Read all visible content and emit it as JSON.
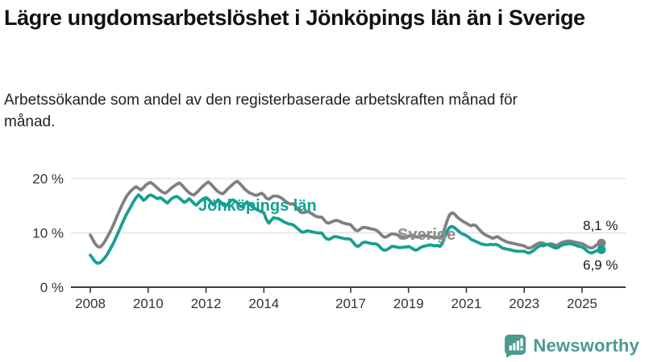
{
  "header": {
    "title": "Lägre ungdomsarbetslöshet i Jönköpings län än i Sverige",
    "subtitle": "Arbetssökande som andel av den registerbaserade arbetskraften månad för månad."
  },
  "footer": {
    "brand": "Newsworthy",
    "logo_icon": "bar-chart-speech-bubble-icon"
  },
  "colors": {
    "jonkoping_line": "#14a092",
    "sverige_line": "#808080",
    "sverige_label": "#8c8c8c",
    "grid": "#dcdcdc",
    "axis": "#3a3a3a",
    "tick_text": "#333333",
    "end_label_text": "#1a1a1a",
    "logo_teal": "#4a9a93"
  },
  "chart_data": {
    "type": "line",
    "title": "Lägre ungdomsarbetslöshet i Jönköpings län än i Sverige",
    "xlabel": "",
    "ylabel": "Arbetssökande som andel av den registerbaserade arbetskraften",
    "frequency": "monthly",
    "x_start": "2008-01",
    "x_end": "2025-09",
    "x_ticks": [
      2008,
      2010,
      2012,
      2014,
      2017,
      2019,
      2021,
      2023,
      2025
    ],
    "y_ticks": [
      {
        "value": 0,
        "label": "0 %"
      },
      {
        "value": 10,
        "label": "10 %"
      },
      {
        "value": 20,
        "label": "20 %"
      }
    ],
    "ylim": [
      0,
      22
    ],
    "grid": "horizontal-only",
    "legend_position": "inline-labels-on-lines",
    "series": [
      {
        "name": "Sverige",
        "end_label": "8,1 %",
        "end_value": 8.1,
        "values": [
          9.6,
          8.8,
          8.0,
          7.5,
          7.4,
          7.8,
          8.4,
          9.2,
          10.0,
          10.9,
          11.9,
          13.0,
          14.0,
          15.0,
          15.9,
          16.7,
          17.3,
          17.8,
          18.2,
          18.5,
          18.2,
          17.9,
          18.3,
          18.8,
          19.1,
          19.3,
          19.0,
          18.6,
          18.2,
          17.8,
          17.5,
          17.3,
          17.6,
          18.0,
          18.4,
          18.7,
          19.0,
          19.2,
          18.8,
          18.3,
          17.8,
          17.4,
          17.1,
          17.0,
          17.4,
          17.8,
          18.3,
          18.7,
          19.1,
          19.4,
          19.0,
          18.5,
          18.0,
          17.6,
          17.3,
          17.2,
          17.6,
          18.1,
          18.5,
          18.9,
          19.3,
          19.5,
          19.1,
          18.6,
          18.1,
          17.7,
          17.4,
          17.2,
          17.0,
          16.9,
          17.1,
          17.3,
          17.0,
          16.4,
          16.2,
          16.5,
          16.8,
          16.8,
          16.7,
          16.5,
          16.2,
          15.8,
          15.5,
          15.3,
          15.4,
          15.0,
          14.4,
          13.9,
          13.7,
          13.8,
          13.9,
          13.8,
          13.5,
          13.2,
          13.0,
          12.9,
          12.9,
          12.4,
          11.9,
          11.8,
          12.0,
          12.2,
          12.3,
          12.2,
          12.0,
          11.8,
          11.7,
          11.6,
          11.5,
          11.0,
          10.5,
          10.4,
          10.7,
          11.0,
          11.0,
          10.9,
          10.8,
          10.7,
          10.6,
          10.4,
          10.0,
          9.5,
          9.2,
          9.3,
          9.6,
          9.8,
          9.8,
          9.7,
          9.5,
          9.3,
          9.2,
          9.1,
          9.4,
          9.6,
          9.5,
          9.3,
          9.2,
          9.4,
          9.5,
          9.5,
          9.4,
          9.3,
          9.2,
          9.1,
          9.2,
          9.0,
          9.5,
          10.8,
          12.2,
          13.3,
          13.7,
          13.5,
          13.0,
          12.6,
          12.3,
          12.0,
          11.8,
          11.5,
          11.3,
          11.5,
          11.3,
          10.8,
          10.3,
          9.9,
          9.6,
          9.4,
          9.2,
          9.0,
          9.2,
          9.3,
          9.0,
          8.7,
          8.5,
          8.3,
          8.2,
          8.1,
          8.0,
          7.9,
          7.8,
          7.7,
          7.6,
          7.3,
          7.2,
          7.3,
          7.6,
          7.9,
          8.1,
          8.2,
          8.1,
          7.8,
          7.9,
          8.0,
          7.9,
          7.7,
          7.8,
          8.1,
          8.3,
          8.4,
          8.5,
          8.5,
          8.4,
          8.3,
          8.2,
          8.1,
          8.0,
          7.8,
          7.5,
          7.3,
          7.2,
          7.4,
          7.8,
          8.0,
          8.1
        ]
      },
      {
        "name": "Jönköpings län",
        "end_label": "6,9 %",
        "end_value": 6.9,
        "values": [
          5.9,
          5.3,
          4.7,
          4.4,
          4.5,
          4.9,
          5.4,
          6.0,
          6.8,
          7.6,
          8.5,
          9.5,
          10.5,
          11.5,
          12.5,
          13.4,
          14.2,
          15.0,
          15.8,
          16.5,
          17.0,
          16.6,
          16.0,
          16.3,
          16.8,
          17.0,
          16.8,
          16.5,
          16.3,
          16.5,
          16.2,
          15.8,
          15.5,
          16.0,
          16.4,
          16.6,
          16.7,
          16.4,
          16.0,
          15.6,
          15.9,
          16.3,
          15.9,
          15.4,
          15.1,
          15.6,
          16.0,
          16.3,
          16.5,
          16.2,
          15.7,
          15.2,
          15.6,
          16.1,
          15.7,
          15.2,
          14.9,
          15.3,
          15.8,
          16.1,
          15.9,
          15.5,
          15.0,
          14.8,
          15.3,
          15.7,
          15.3,
          14.9,
          14.6,
          14.3,
          14.1,
          13.9,
          13.7,
          12.5,
          11.8,
          12.3,
          12.8,
          12.7,
          12.6,
          12.4,
          12.1,
          11.9,
          11.7,
          11.6,
          11.5,
          11.2,
          10.8,
          10.4,
          10.1,
          10.2,
          10.4,
          10.3,
          10.2,
          10.1,
          10.0,
          10.0,
          10.0,
          9.4,
          8.9,
          8.8,
          9.0,
          9.3,
          9.3,
          9.2,
          9.1,
          9.0,
          8.9,
          8.9,
          8.8,
          8.3,
          7.7,
          7.5,
          7.8,
          8.2,
          8.3,
          8.2,
          8.1,
          8.0,
          8.0,
          7.9,
          7.5,
          7.0,
          6.8,
          6.9,
          7.2,
          7.5,
          7.5,
          7.4,
          7.3,
          7.3,
          7.4,
          7.4,
          7.5,
          7.3,
          7.0,
          6.8,
          7.0,
          7.3,
          7.5,
          7.6,
          7.7,
          7.8,
          7.7,
          7.6,
          7.7,
          7.5,
          8.0,
          9.2,
          10.3,
          11.0,
          11.2,
          11.0,
          10.6,
          10.2,
          9.9,
          9.7,
          9.5,
          9.2,
          8.8,
          8.6,
          8.4,
          8.2,
          8.0,
          7.9,
          7.8,
          7.8,
          7.9,
          7.8,
          7.9,
          7.8,
          7.5,
          7.2,
          7.1,
          7.0,
          6.9,
          6.8,
          6.7,
          6.6,
          6.6,
          6.6,
          6.6,
          6.4,
          6.3,
          6.5,
          6.8,
          7.2,
          7.5,
          7.7,
          7.6,
          7.9,
          7.8,
          7.6,
          7.4,
          7.2,
          7.3,
          7.6,
          7.8,
          7.9,
          8.0,
          8.0,
          7.9,
          7.8,
          7.6,
          7.5,
          7.4,
          7.1,
          6.7,
          6.4,
          6.3,
          6.5,
          6.7,
          6.8,
          6.9
        ]
      }
    ]
  }
}
